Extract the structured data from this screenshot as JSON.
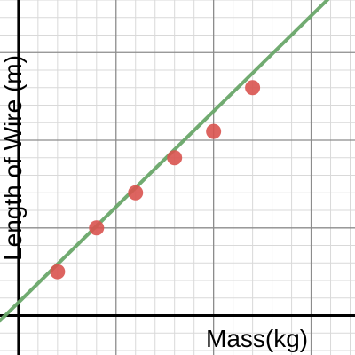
{
  "chart_data": {
    "type": "scatter",
    "xlabel": "Mass(kg)",
    "ylabel": "Length of Wire (m)",
    "xlim": [
      -0.19,
      3.45
    ],
    "ylim": [
      -0.45,
      3.6
    ],
    "grid": true,
    "minor_grid": true,
    "points": [
      {
        "x": 0.4,
        "y": 0.5
      },
      {
        "x": 0.8,
        "y": 1.0
      },
      {
        "x": 1.2,
        "y": 1.4
      },
      {
        "x": 1.6,
        "y": 1.8
      },
      {
        "x": 2.0,
        "y": 2.1
      },
      {
        "x": 2.4,
        "y": 2.6
      }
    ],
    "fit_line": {
      "slope": 1.09,
      "intercept": 0.15
    },
    "colors": {
      "points": "#d9534f",
      "line": "#6aa76a",
      "major_grid": "#8c8c8c",
      "minor_grid": "#d9d9d9",
      "axis": "#000000"
    }
  }
}
